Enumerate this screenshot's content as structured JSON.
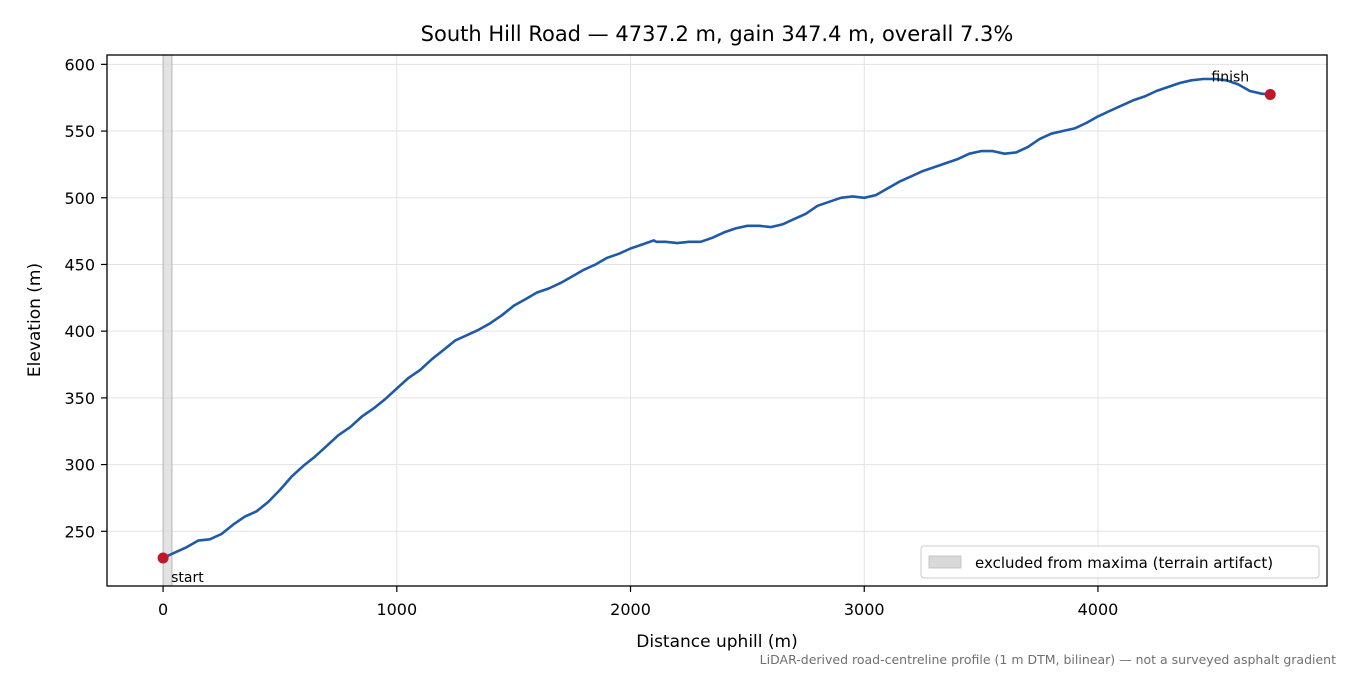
{
  "chart_data": {
    "type": "line",
    "title": "South Hill Road — 4737.2 m, gain 347.4 m, overall 7.3%",
    "xlabel": "Distance uphill (m)",
    "ylabel": "Elevation (m)",
    "xlim": [
      -240,
      4980
    ],
    "ylim": [
      209,
      607
    ],
    "xticks": [
      0,
      1000,
      2000,
      3000,
      4000
    ],
    "yticks": [
      250,
      300,
      350,
      400,
      450,
      500,
      550,
      600
    ],
    "grid": true,
    "legend_position": "lower-right",
    "series": [
      {
        "color": "#1f5aa8",
        "x": [
          0,
          50,
          100,
          150,
          200,
          250,
          300,
          350,
          400,
          450,
          500,
          550,
          600,
          650,
          700,
          750,
          800,
          850,
          900,
          950,
          1000,
          1050,
          1100,
          1150,
          1200,
          1250,
          1300,
          1350,
          1400,
          1450,
          1500,
          1550,
          1600,
          1650,
          1700,
          1750,
          1800,
          1850,
          1900,
          1950,
          2000,
          2050,
          2100,
          2110,
          2150,
          2200,
          2250,
          2300,
          2350,
          2400,
          2450,
          2500,
          2550,
          2600,
          2650,
          2700,
          2750,
          2800,
          2850,
          2900,
          2950,
          3000,
          3050,
          3100,
          3150,
          3200,
          3250,
          3300,
          3350,
          3400,
          3450,
          3500,
          3550,
          3600,
          3650,
          3700,
          3750,
          3800,
          3850,
          3900,
          3950,
          4000,
          4050,
          4100,
          4150,
          4200,
          4250,
          4300,
          4350,
          4400,
          4450,
          4500,
          4550,
          4600,
          4650,
          4700,
          4737.2
        ],
        "y": [
          230,
          234,
          238,
          243,
          244,
          248,
          255,
          261,
          265,
          272,
          281,
          291,
          299,
          306,
          314,
          322,
          328,
          336,
          342,
          349,
          357,
          365,
          371,
          379,
          386,
          393,
          397,
          401,
          406,
          412,
          419,
          424,
          429,
          432,
          436,
          441,
          446,
          450,
          455,
          458,
          462,
          465,
          468,
          467,
          467,
          466,
          467,
          467,
          470,
          474,
          477,
          479,
          479,
          478,
          480,
          484,
          488,
          494,
          497,
          500,
          501,
          500,
          502,
          507,
          512,
          516,
          520,
          523,
          526,
          529,
          533,
          535,
          535,
          533,
          534,
          538,
          544,
          548,
          550,
          552,
          556,
          561,
          565,
          569,
          573,
          576,
          580,
          583,
          586,
          588,
          589,
          589,
          588,
          585,
          580,
          578,
          577.4
        ]
      }
    ],
    "excluded_band": {
      "x": [
        0,
        38
      ]
    },
    "annotations": [
      {
        "text": "start",
        "x": 0,
        "y": 230
      },
      {
        "text": "finish",
        "x": 4737.2,
        "y": 577.4
      }
    ],
    "legend": [
      {
        "label": "excluded from maxima (terrain artifact)",
        "color": "#d9d9d9"
      }
    ],
    "footnote": "LiDAR-derived road-centreline profile (1 m DTM, bilinear) — not a surveyed asphalt gradient",
    "marker_color": "#c0182a"
  }
}
